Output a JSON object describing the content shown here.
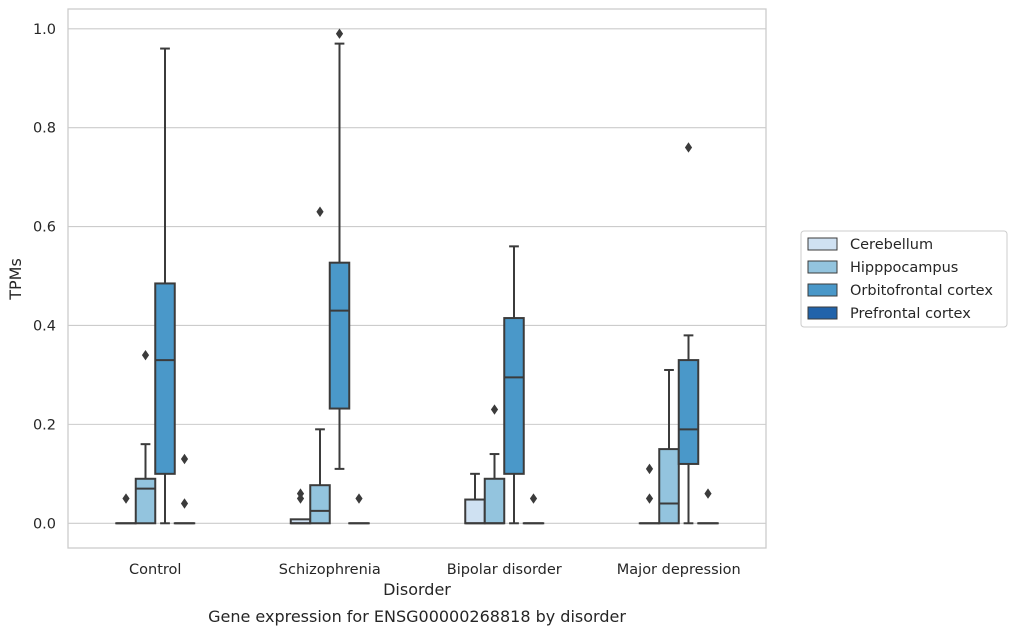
{
  "chart_data": {
    "type": "box",
    "xlabel": "Disorder",
    "ylabel": "TPMs",
    "caption": "Gene expression for ENSG00000268818 by disorder",
    "ylim": [
      -0.05,
      1.04
    ],
    "yticks": [
      0.0,
      0.2,
      0.4,
      0.6,
      0.8,
      1.0
    ],
    "ytick_labels": [
      "0.0",
      "0.2",
      "0.4",
      "0.6",
      "0.8",
      "1.0"
    ],
    "grid": "horizontal",
    "legend_position": "right",
    "categories": [
      "Control",
      "Schizophrenia",
      "Bipolar disorder",
      "Major depression"
    ],
    "hue_order": [
      "Cerebellum",
      "Hipppocampus",
      "Orbitofrontal cortex",
      "Prefrontal cortex"
    ],
    "colors": {
      "Cerebellum": "#cfe1f2",
      "Hipppocampus": "#93c4de",
      "Orbitofrontal cortex": "#4a98c9",
      "Prefrontal cortex": "#2163aa",
      "line": "#3b3b3b"
    },
    "boxes": [
      {
        "category": "Control",
        "hue": "Cerebellum",
        "q1": 0.0,
        "median": 0.0,
        "q3": 0.0,
        "whisker_low": 0.0,
        "whisker_high": 0.0,
        "outliers": [
          0.05
        ]
      },
      {
        "category": "Control",
        "hue": "Hipppocampus",
        "q1": 0.0,
        "median": 0.07,
        "q3": 0.09,
        "whisker_low": 0.0,
        "whisker_high": 0.16,
        "outliers": [
          0.34
        ]
      },
      {
        "category": "Control",
        "hue": "Orbitofrontal cortex",
        "q1": 0.1,
        "median": 0.33,
        "q3": 0.485,
        "whisker_low": 0.0,
        "whisker_high": 0.96,
        "outliers": []
      },
      {
        "category": "Control",
        "hue": "Prefrontal cortex",
        "q1": 0.0,
        "median": 0.0,
        "q3": 0.0,
        "whisker_low": 0.0,
        "whisker_high": 0.0,
        "outliers": [
          0.04,
          0.13
        ]
      },
      {
        "category": "Schizophrenia",
        "hue": "Cerebellum",
        "q1": 0.0,
        "median": 0.0,
        "q3": 0.008,
        "whisker_low": 0.0,
        "whisker_high": 0.008,
        "outliers": [
          0.05,
          0.06
        ]
      },
      {
        "category": "Schizophrenia",
        "hue": "Hipppocampus",
        "q1": 0.0,
        "median": 0.025,
        "q3": 0.077,
        "whisker_low": 0.0,
        "whisker_high": 0.19,
        "outliers": [
          0.63
        ]
      },
      {
        "category": "Schizophrenia",
        "hue": "Orbitofrontal cortex",
        "q1": 0.232,
        "median": 0.43,
        "q3": 0.527,
        "whisker_low": 0.11,
        "whisker_high": 0.97,
        "outliers": [
          0.99
        ]
      },
      {
        "category": "Schizophrenia",
        "hue": "Prefrontal cortex",
        "q1": 0.0,
        "median": 0.0,
        "q3": 0.0,
        "whisker_low": 0.0,
        "whisker_high": 0.0,
        "outliers": [
          0.05
        ]
      },
      {
        "category": "Bipolar disorder",
        "hue": "Cerebellum",
        "q1": 0.0,
        "median": 0.0,
        "q3": 0.048,
        "whisker_low": 0.0,
        "whisker_high": 0.1,
        "outliers": []
      },
      {
        "category": "Bipolar disorder",
        "hue": "Hipppocampus",
        "q1": 0.0,
        "median": 0.0,
        "q3": 0.09,
        "whisker_low": 0.0,
        "whisker_high": 0.14,
        "outliers": [
          0.23
        ]
      },
      {
        "category": "Bipolar disorder",
        "hue": "Orbitofrontal cortex",
        "q1": 0.1,
        "median": 0.295,
        "q3": 0.415,
        "whisker_low": 0.0,
        "whisker_high": 0.56,
        "outliers": []
      },
      {
        "category": "Bipolar disorder",
        "hue": "Prefrontal cortex",
        "q1": 0.0,
        "median": 0.0,
        "q3": 0.0,
        "whisker_low": 0.0,
        "whisker_high": 0.0,
        "outliers": [
          0.05
        ]
      },
      {
        "category": "Major depression",
        "hue": "Cerebellum",
        "q1": 0.0,
        "median": 0.0,
        "q3": 0.0,
        "whisker_low": 0.0,
        "whisker_high": 0.0,
        "outliers": [
          0.05,
          0.11
        ]
      },
      {
        "category": "Major depression",
        "hue": "Hipppocampus",
        "q1": 0.0,
        "median": 0.04,
        "q3": 0.15,
        "whisker_low": 0.0,
        "whisker_high": 0.31,
        "outliers": []
      },
      {
        "category": "Major depression",
        "hue": "Orbitofrontal cortex",
        "q1": 0.12,
        "median": 0.19,
        "q3": 0.33,
        "whisker_low": 0.0,
        "whisker_high": 0.38,
        "outliers": [
          0.76
        ]
      },
      {
        "category": "Major depression",
        "hue": "Prefrontal cortex",
        "q1": 0.0,
        "median": 0.0,
        "q3": 0.0,
        "whisker_low": 0.0,
        "whisker_high": 0.0,
        "outliers": [
          0.06
        ]
      }
    ]
  }
}
